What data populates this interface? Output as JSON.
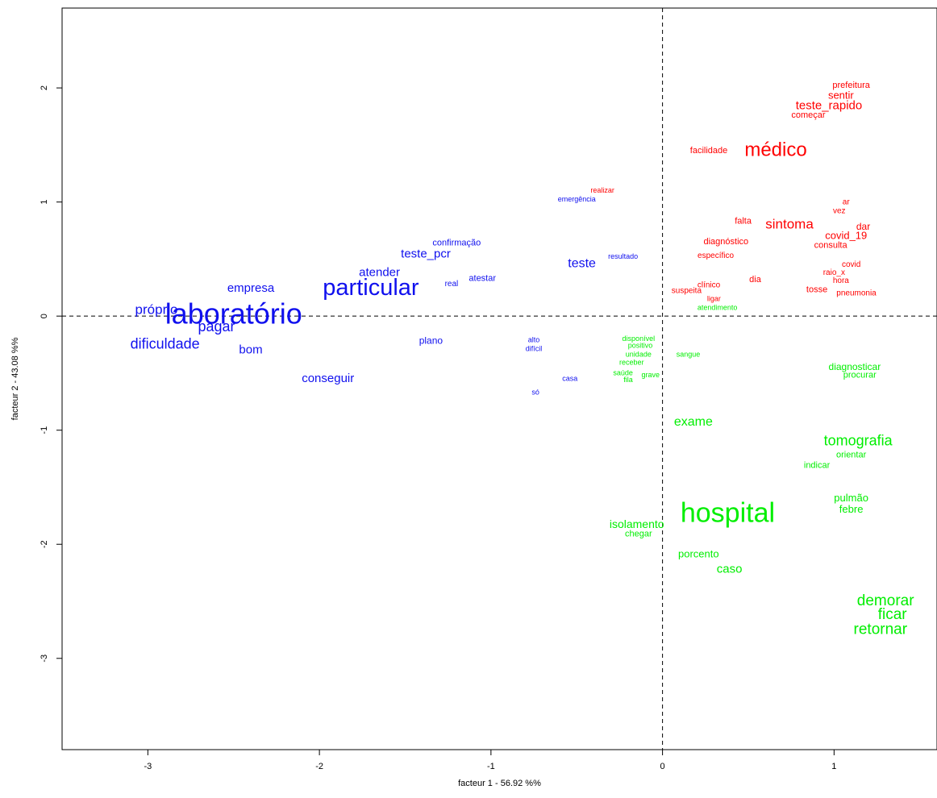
{
  "chart_data": {
    "type": "scatter",
    "xlabel": "facteur  1  - 56.92 %%",
    "ylabel": "facteur  2 - 43.08 %%",
    "xlim": [
      -3.5,
      1.6
    ],
    "ylim": [
      -3.8,
      2.7
    ],
    "xticks": [
      -3,
      -2,
      -1,
      0,
      1
    ],
    "yticks": [
      -3,
      -2,
      -1,
      0,
      1,
      2
    ],
    "reference_lines": {
      "x": 0,
      "y": 0,
      "style": "dashed"
    },
    "colors": {
      "blue": "#1010ee",
      "red": "#ff0000",
      "green": "#00ee00"
    },
    "series": [
      {
        "color": "blue",
        "points": [
          {
            "label": "laboratório",
            "x": -2.5,
            "y": 0.0,
            "size": 36
          },
          {
            "label": "particular",
            "x": -1.7,
            "y": 0.24,
            "size": 29
          },
          {
            "label": "próprio",
            "x": -2.95,
            "y": 0.05,
            "size": 17
          },
          {
            "label": "pagar",
            "x": -2.6,
            "y": -0.1,
            "size": 18
          },
          {
            "label": "dificuldade",
            "x": -2.9,
            "y": -0.25,
            "size": 18
          },
          {
            "label": "bom",
            "x": -2.4,
            "y": -0.3,
            "size": 15
          },
          {
            "label": "empresa",
            "x": -2.4,
            "y": 0.24,
            "size": 15
          },
          {
            "label": "atender",
            "x": -1.65,
            "y": 0.38,
            "size": 15
          },
          {
            "label": "teste_pcr",
            "x": -1.38,
            "y": 0.54,
            "size": 15
          },
          {
            "label": "confirmação",
            "x": -1.2,
            "y": 0.64,
            "size": 11
          },
          {
            "label": "atestar",
            "x": -1.05,
            "y": 0.33,
            "size": 11
          },
          {
            "label": "real",
            "x": -1.23,
            "y": 0.28,
            "size": 10
          },
          {
            "label": "conseguir",
            "x": -1.95,
            "y": -0.55,
            "size": 15
          },
          {
            "label": "plano",
            "x": -1.35,
            "y": -0.22,
            "size": 12
          },
          {
            "label": "teste",
            "x": -0.47,
            "y": 0.46,
            "size": 16
          },
          {
            "label": "resultado",
            "x": -0.23,
            "y": 0.52,
            "size": 9
          },
          {
            "label": "emergência",
            "x": -0.5,
            "y": 1.02,
            "size": 9
          },
          {
            "label": "alto",
            "x": -0.75,
            "y": -0.21,
            "size": 9
          },
          {
            "label": "difícil",
            "x": -0.75,
            "y": -0.29,
            "size": 9
          },
          {
            "label": "casa",
            "x": -0.54,
            "y": -0.55,
            "size": 9
          },
          {
            "label": "só",
            "x": -0.74,
            "y": -0.67,
            "size": 9
          }
        ]
      },
      {
        "color": "red",
        "points": [
          {
            "label": "médico",
            "x": 0.66,
            "y": 1.45,
            "size": 24
          },
          {
            "label": "facilidade",
            "x": 0.27,
            "y": 1.45,
            "size": 11
          },
          {
            "label": "prefeitura",
            "x": 1.1,
            "y": 2.02,
            "size": 11
          },
          {
            "label": "sentir",
            "x": 1.04,
            "y": 1.93,
            "size": 13
          },
          {
            "label": "teste_rapido",
            "x": 0.97,
            "y": 1.84,
            "size": 15
          },
          {
            "label": "começar",
            "x": 0.85,
            "y": 1.76,
            "size": 11
          },
          {
            "label": "realizar",
            "x": -0.35,
            "y": 1.1,
            "size": 9
          },
          {
            "label": "ar",
            "x": 1.07,
            "y": 1.0,
            "size": 10
          },
          {
            "label": "vez",
            "x": 1.03,
            "y": 0.92,
            "size": 10
          },
          {
            "label": "dar",
            "x": 1.17,
            "y": 0.78,
            "size": 12
          },
          {
            "label": "sintoma",
            "x": 0.74,
            "y": 0.8,
            "size": 17
          },
          {
            "label": "falta",
            "x": 0.47,
            "y": 0.83,
            "size": 11
          },
          {
            "label": "covid_19",
            "x": 1.07,
            "y": 0.7,
            "size": 13
          },
          {
            "label": "consulta",
            "x": 0.98,
            "y": 0.62,
            "size": 11
          },
          {
            "label": "diagnóstico",
            "x": 0.37,
            "y": 0.65,
            "size": 11
          },
          {
            "label": "específico",
            "x": 0.31,
            "y": 0.53,
            "size": 10
          },
          {
            "label": "covid",
            "x": 1.1,
            "y": 0.45,
            "size": 10
          },
          {
            "label": "raio_x",
            "x": 1.0,
            "y": 0.38,
            "size": 10
          },
          {
            "label": "hora",
            "x": 1.04,
            "y": 0.31,
            "size": 10
          },
          {
            "label": "dia",
            "x": 0.54,
            "y": 0.32,
            "size": 11
          },
          {
            "label": "clínico",
            "x": 0.27,
            "y": 0.27,
            "size": 10
          },
          {
            "label": "tosse",
            "x": 0.9,
            "y": 0.23,
            "size": 11
          },
          {
            "label": "pneumonia",
            "x": 1.13,
            "y": 0.2,
            "size": 10
          },
          {
            "label": "suspeita",
            "x": 0.14,
            "y": 0.22,
            "size": 10
          },
          {
            "label": "ligar",
            "x": 0.3,
            "y": 0.15,
            "size": 9
          }
        ]
      },
      {
        "color": "green",
        "points": [
          {
            "label": "hospital",
            "x": 0.38,
            "y": -1.74,
            "size": 34
          },
          {
            "label": "exame",
            "x": 0.18,
            "y": -0.93,
            "size": 16
          },
          {
            "label": "tomografia",
            "x": 1.14,
            "y": -1.1,
            "size": 18
          },
          {
            "label": "orientar",
            "x": 1.1,
            "y": -1.22,
            "size": 11
          },
          {
            "label": "indicar",
            "x": 0.9,
            "y": -1.31,
            "size": 11
          },
          {
            "label": "pulmão",
            "x": 1.1,
            "y": -1.6,
            "size": 13
          },
          {
            "label": "febre",
            "x": 1.1,
            "y": -1.7,
            "size": 13
          },
          {
            "label": "isolamento",
            "x": -0.15,
            "y": -1.83,
            "size": 14
          },
          {
            "label": "chegar",
            "x": -0.14,
            "y": -1.91,
            "size": 11
          },
          {
            "label": "porcento",
            "x": 0.21,
            "y": -2.09,
            "size": 13
          },
          {
            "label": "caso",
            "x": 0.39,
            "y": -2.22,
            "size": 15
          },
          {
            "label": "demorar",
            "x": 1.3,
            "y": -2.5,
            "size": 19
          },
          {
            "label": "ficar",
            "x": 1.34,
            "y": -2.62,
            "size": 19
          },
          {
            "label": "retornar",
            "x": 1.27,
            "y": -2.75,
            "size": 19
          },
          {
            "label": "atendimento",
            "x": 0.32,
            "y": 0.07,
            "size": 9
          },
          {
            "label": "disponível",
            "x": -0.14,
            "y": -0.2,
            "size": 9
          },
          {
            "label": "positivo",
            "x": -0.13,
            "y": -0.26,
            "size": 9
          },
          {
            "label": "unidade",
            "x": -0.14,
            "y": -0.34,
            "size": 9
          },
          {
            "label": "receber",
            "x": -0.18,
            "y": -0.41,
            "size": 9
          },
          {
            "label": "saúde",
            "x": -0.23,
            "y": -0.5,
            "size": 9
          },
          {
            "label": "grave",
            "x": -0.07,
            "y": -0.52,
            "size": 9
          },
          {
            "label": "fila",
            "x": -0.2,
            "y": -0.56,
            "size": 9
          },
          {
            "label": "sangue",
            "x": 0.15,
            "y": -0.34,
            "size": 9
          },
          {
            "label": "diagnosticar",
            "x": 1.12,
            "y": -0.45,
            "size": 12
          },
          {
            "label": "procurar",
            "x": 1.15,
            "y": -0.52,
            "size": 11
          }
        ]
      }
    ]
  }
}
